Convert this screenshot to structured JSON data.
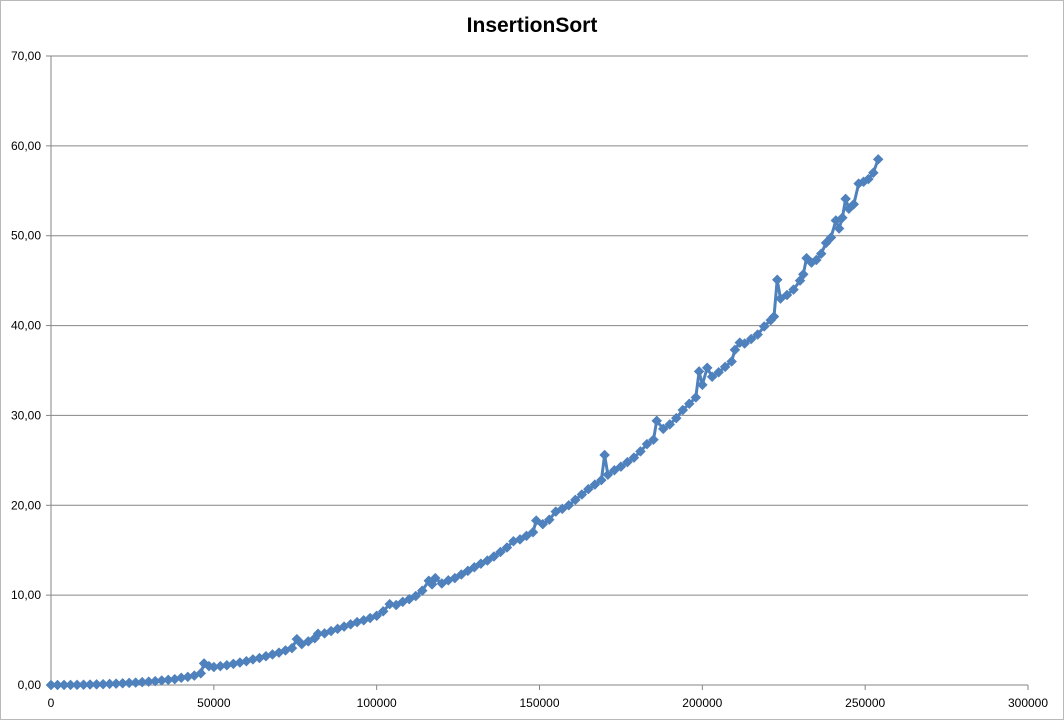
{
  "chart_data": {
    "type": "line",
    "title": "InsertionSort",
    "xlabel": "",
    "ylabel": "",
    "xlim": [
      0,
      300000
    ],
    "ylim": [
      0,
      70
    ],
    "x_ticks": [
      "0",
      "50000",
      "100000",
      "150000",
      "200000",
      "250000",
      "300000"
    ],
    "y_ticks": [
      "0,00",
      "10,00",
      "20,00",
      "30,00",
      "40,00",
      "50,00",
      "60,00",
      "70,00"
    ],
    "grid": "horizontal",
    "legend": "none",
    "marker": "diamond",
    "series_color": "#4f81bd",
    "series": [
      {
        "points": [
          [
            0,
            0.0
          ],
          [
            2000,
            0.0
          ],
          [
            4000,
            0.01
          ],
          [
            6000,
            0.01
          ],
          [
            8000,
            0.02
          ],
          [
            10000,
            0.03
          ],
          [
            12000,
            0.05
          ],
          [
            14000,
            0.07
          ],
          [
            16000,
            0.09
          ],
          [
            18000,
            0.12
          ],
          [
            20000,
            0.15
          ],
          [
            22000,
            0.19
          ],
          [
            24000,
            0.23
          ],
          [
            26000,
            0.27
          ],
          [
            28000,
            0.32
          ],
          [
            30000,
            0.37
          ],
          [
            32000,
            0.43
          ],
          [
            34000,
            0.5
          ],
          [
            36000,
            0.57
          ],
          [
            38000,
            0.65
          ],
          [
            40000,
            0.8
          ],
          [
            42000,
            0.9
          ],
          [
            44000,
            1.05
          ],
          [
            46000,
            1.3
          ],
          [
            47000,
            2.4
          ],
          [
            48500,
            2.1
          ],
          [
            50000,
            2.0
          ],
          [
            52000,
            2.1
          ],
          [
            54000,
            2.2
          ],
          [
            56000,
            2.35
          ],
          [
            58000,
            2.5
          ],
          [
            60000,
            2.65
          ],
          [
            62000,
            2.85
          ],
          [
            64000,
            3.0
          ],
          [
            66000,
            3.2
          ],
          [
            68000,
            3.4
          ],
          [
            70000,
            3.6
          ],
          [
            72000,
            3.85
          ],
          [
            74000,
            4.1
          ],
          [
            75500,
            5.1
          ],
          [
            77000,
            4.55
          ],
          [
            79000,
            4.85
          ],
          [
            81000,
            5.2
          ],
          [
            82000,
            5.7
          ],
          [
            84000,
            5.75
          ],
          [
            86000,
            6.0
          ],
          [
            88000,
            6.25
          ],
          [
            90000,
            6.5
          ],
          [
            92000,
            6.75
          ],
          [
            94000,
            7.0
          ],
          [
            96000,
            7.2
          ],
          [
            98000,
            7.45
          ],
          [
            100000,
            7.7
          ],
          [
            102000,
            8.2
          ],
          [
            104000,
            9.0
          ],
          [
            106000,
            8.9
          ],
          [
            108000,
            9.25
          ],
          [
            110000,
            9.55
          ],
          [
            112000,
            9.9
          ],
          [
            114000,
            10.5
          ],
          [
            116000,
            11.6
          ],
          [
            117000,
            11.2
          ],
          [
            118000,
            11.9
          ],
          [
            120000,
            11.3
          ],
          [
            122000,
            11.65
          ],
          [
            124000,
            11.9
          ],
          [
            126000,
            12.3
          ],
          [
            128000,
            12.7
          ],
          [
            130000,
            13.1
          ],
          [
            132000,
            13.5
          ],
          [
            134000,
            13.85
          ],
          [
            136000,
            14.3
          ],
          [
            138000,
            14.8
          ],
          [
            140000,
            15.3
          ],
          [
            142000,
            16.0
          ],
          [
            144000,
            16.2
          ],
          [
            146000,
            16.6
          ],
          [
            148000,
            17.0
          ],
          [
            149000,
            18.3
          ],
          [
            151000,
            17.9
          ],
          [
            153000,
            18.4
          ],
          [
            155000,
            19.3
          ],
          [
            157000,
            19.6
          ],
          [
            159000,
            20.0
          ],
          [
            161000,
            20.6
          ],
          [
            163000,
            21.2
          ],
          [
            165000,
            21.8
          ],
          [
            167000,
            22.3
          ],
          [
            169000,
            22.8
          ],
          [
            170000,
            25.6
          ],
          [
            171000,
            23.4
          ],
          [
            173000,
            23.9
          ],
          [
            175000,
            24.3
          ],
          [
            177000,
            24.8
          ],
          [
            179000,
            25.3
          ],
          [
            181000,
            26.0
          ],
          [
            183000,
            26.8
          ],
          [
            185000,
            27.3
          ],
          [
            186000,
            29.4
          ],
          [
            188000,
            28.5
          ],
          [
            190000,
            29.0
          ],
          [
            192000,
            29.7
          ],
          [
            194000,
            30.6
          ],
          [
            196000,
            31.3
          ],
          [
            198000,
            32.0
          ],
          [
            199000,
            34.9
          ],
          [
            200000,
            33.4
          ],
          [
            201500,
            35.3
          ],
          [
            203000,
            34.3
          ],
          [
            205000,
            34.8
          ],
          [
            207000,
            35.4
          ],
          [
            209000,
            36.0
          ],
          [
            210000,
            37.3
          ],
          [
            211500,
            38.1
          ],
          [
            213000,
            38.0
          ],
          [
            215000,
            38.5
          ],
          [
            217000,
            39.0
          ],
          [
            219000,
            39.9
          ],
          [
            221000,
            40.6
          ],
          [
            222000,
            41.0
          ],
          [
            223000,
            45.1
          ],
          [
            224000,
            43.0
          ],
          [
            226000,
            43.4
          ],
          [
            228000,
            44.0
          ],
          [
            230000,
            45.0
          ],
          [
            231000,
            45.7
          ],
          [
            232000,
            47.5
          ],
          [
            233500,
            47.0
          ],
          [
            235000,
            47.3
          ],
          [
            236500,
            48.0
          ],
          [
            238000,
            49.2
          ],
          [
            239500,
            49.8
          ],
          [
            241000,
            51.7
          ],
          [
            242000,
            50.8
          ],
          [
            243000,
            52.0
          ],
          [
            244000,
            54.1
          ],
          [
            245000,
            53.0
          ],
          [
            246500,
            53.5
          ],
          [
            248000,
            55.8
          ],
          [
            249500,
            56.0
          ],
          [
            251000,
            56.3
          ],
          [
            252500,
            57.0
          ],
          [
            254000,
            58.5
          ]
        ]
      }
    ]
  }
}
